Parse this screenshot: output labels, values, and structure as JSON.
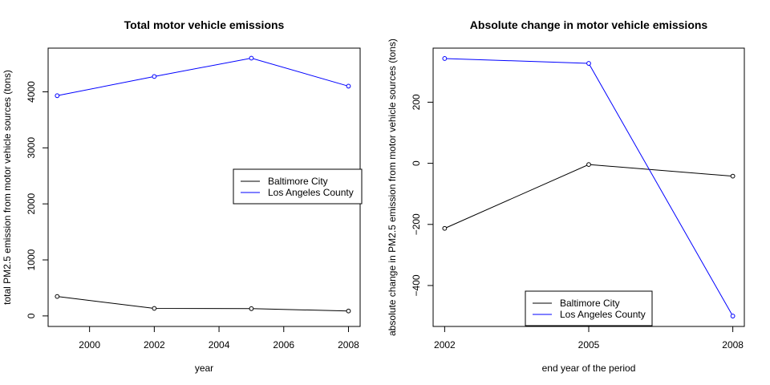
{
  "chart_data": [
    {
      "type": "line",
      "title": "Total motor vehicle emissions",
      "xlabel": "year",
      "ylabel": "total PM2.5 emission from motor vehicle sources (tons)",
      "x": [
        1999,
        2002,
        2005,
        2008
      ],
      "xlim": [
        1998.72,
        2008.36
      ],
      "ylim": [
        -188,
        4780
      ],
      "xticks": [
        2000,
        2002,
        2004,
        2006,
        2008
      ],
      "yticks": [
        0,
        1000,
        2000,
        3000,
        4000
      ],
      "series": [
        {
          "name": "Baltimore City",
          "color": "#000000",
          "values": [
            347,
            134,
            130,
            88
          ]
        },
        {
          "name": "Los Angeles County",
          "color": "#0000ff",
          "values": [
            3931,
            4274,
            4601,
            4101
          ]
        }
      ],
      "legend": "right",
      "grid": false
    },
    {
      "type": "line",
      "title": "Absolute change in motor vehicle emissions",
      "xlabel": "end year of the period",
      "ylabel": "absolute change in PM2.5 emission from motor vehicle sources (tons)",
      "x": [
        2002,
        2005,
        2008
      ],
      "xlim": [
        2001.76,
        2008.24
      ],
      "ylim": [
        -534,
        377
      ],
      "xticks": [
        2002,
        2005,
        2008
      ],
      "yticks": [
        -400,
        -200,
        0,
        200
      ],
      "series": [
        {
          "name": "Baltimore City",
          "color": "#000000",
          "values": [
            -213,
            -4,
            -42
          ]
        },
        {
          "name": "Los Angeles County",
          "color": "#0000ff",
          "values": [
            343,
            327,
            -500
          ]
        }
      ],
      "legend": "bottom",
      "grid": false
    }
  ]
}
